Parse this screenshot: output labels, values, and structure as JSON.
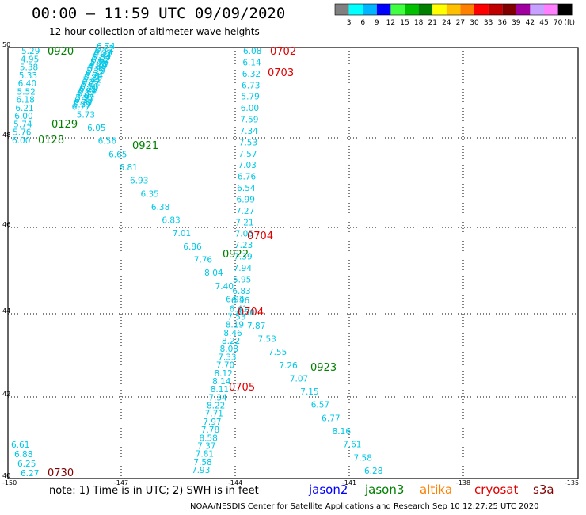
{
  "header": {
    "title": "00:00 – 11:59 UTC 09/09/2020",
    "subtitle": "12 hour collection of altimeter wave heights"
  },
  "colorbar": {
    "colors": [
      "#808080",
      "#00ffff",
      "#00b4ff",
      "#0000ff",
      "#40ff40",
      "#00c000",
      "#008000",
      "#ffff00",
      "#ffc000",
      "#ff8000",
      "#ff0000",
      "#c00000",
      "#800000",
      "#a000a0",
      "#c8a0ff",
      "#ff80ff",
      "#000000"
    ],
    "labels": [
      "3",
      "6",
      "9",
      "12",
      "15",
      "18",
      "21",
      "24",
      "27",
      "30",
      "33",
      "36",
      "39",
      "42",
      "45",
      "70"
    ],
    "unit": "(ft)"
  },
  "axes": {
    "lat_labels": [
      "50",
      "48",
      "46",
      "44",
      "42",
      "40"
    ],
    "lon_labels": [
      "-150",
      "-147",
      "-144",
      "-141",
      "-138",
      "-135"
    ]
  },
  "colors": {
    "swh": "#00c8e6",
    "time_jason3": "#008000",
    "time_s3a": "#e00000",
    "time_s3a_dark": "#800000"
  },
  "swh_values": {
    "a": [
      "5.29",
      "4.95",
      "5.38",
      "5.33",
      "6.40",
      "5.52",
      "6.18",
      "6.21",
      "6.00",
      "5.74",
      "5.76",
      "6.00"
    ],
    "b": [
      "6.74",
      "6.02",
      "6.12",
      "6.39",
      "6.44",
      "6.34",
      "6.62",
      "5.96",
      "4.78",
      "4.69",
      "5.98",
      "5.10",
      "6.37",
      "5.74",
      "5.88",
      "5.41",
      "6.22",
      "6.07",
      "6.66",
      "6.29",
      "6.84",
      "6.17",
      "7.04",
      "5.97",
      "6.39",
      "6.79",
      "5.59",
      "6.77",
      "5.73",
      "6.05",
      "6.56",
      "6.65",
      "6.81",
      "6.93",
      "6.35",
      "6.38",
      "6.83",
      "7.01",
      "6.86",
      "7.76",
      "8.04",
      "7.40",
      "6.93",
      "6.50",
      "7.87",
      "7.53",
      "7.55",
      "7.26",
      "7.07",
      "7.15",
      "6.57",
      "6.77",
      "8.16",
      "7.61",
      "7.58",
      "6.28"
    ],
    "c": [
      "6.08",
      "6.14",
      "6.32",
      "6.73",
      "5.79",
      "6.00",
      "7.59",
      "7.34",
      "7.53",
      "7.57",
      "7.03",
      "6.76",
      "6.54",
      "6.99",
      "7.27",
      "7.21",
      "7.05",
      "7.23",
      "7.39",
      "7.94",
      "5.95",
      "6.83",
      "6.96",
      "6.41",
      "7.53",
      "8.19",
      "8.46",
      "8.22",
      "8.08",
      "7.33",
      "7.70",
      "8.12",
      "8.14",
      "8.11",
      "7.34",
      "8.22",
      "7.71",
      "7.97",
      "7.78",
      "8.58",
      "7.37",
      "7.81",
      "7.58",
      "7.93"
    ],
    "d": [
      "6.61",
      "6.88",
      "6.25",
      "6.27"
    ]
  },
  "time_labels": [
    {
      "text": "0920",
      "mission": "jason3"
    },
    {
      "text": "0129",
      "mission": "jason3"
    },
    {
      "text": "0128",
      "mission": "jason3"
    },
    {
      "text": "0921",
      "mission": "jason3"
    },
    {
      "text": "0922",
      "mission": "jason3"
    },
    {
      "text": "0923",
      "mission": "jason3"
    },
    {
      "text": "0702",
      "mission": "s3a"
    },
    {
      "text": "0703",
      "mission": "s3a"
    },
    {
      "text": "0704",
      "mission": "s3a"
    },
    {
      "text": "0704",
      "mission": "s3a"
    },
    {
      "text": "0705",
      "mission": "s3a"
    },
    {
      "text": "0730",
      "mission": "s3a_dark"
    }
  ],
  "footer": {
    "note": "note: 1) Time is in UTC; 2) SWH is in feet",
    "missions": [
      {
        "name": "jason2",
        "color": "#0000ff"
      },
      {
        "name": "jason3",
        "color": "#008000"
      },
      {
        "name": "altika",
        "color": "#ff8000"
      },
      {
        "name": "cryosat",
        "color": "#e00000"
      },
      {
        "name": "s3a",
        "color": "#800000"
      }
    ],
    "credit": "NOAA/NESDIS Center for Satellite Applications and Research    Sep 10 12:27:25 UTC 2020"
  }
}
